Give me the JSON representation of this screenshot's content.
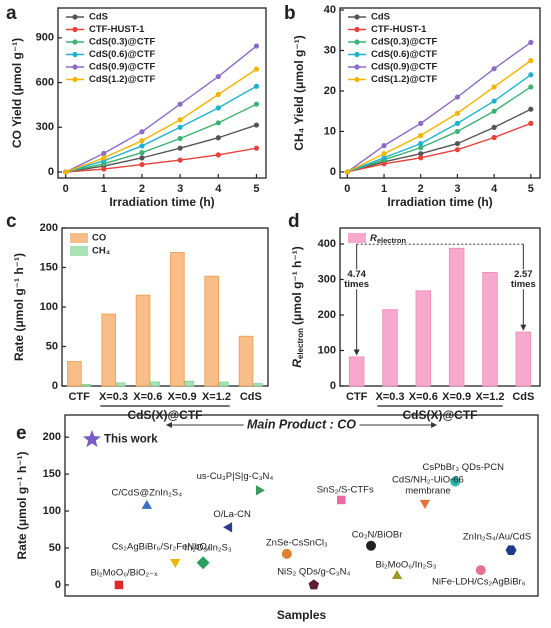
{
  "chart_data": [
    {
      "panel": "a",
      "type": "line",
      "xlabel": "Irradiation time (h)",
      "ylabel": "CO Yield (μmol g⁻¹)",
      "x": [
        0,
        1,
        2,
        3,
        4,
        5
      ],
      "xlim": [
        -0.2,
        5.25
      ],
      "xticks": [
        0,
        1,
        2,
        3,
        4,
        5
      ],
      "ylim": [
        -40,
        1100
      ],
      "yticks": [
        0,
        300,
        600,
        900
      ],
      "legend": "upper left",
      "series": [
        {
          "name": "CdS",
          "color": "#555555",
          "values": [
            0,
            40,
            95,
            160,
            230,
            315
          ]
        },
        {
          "name": "CTF-HUST-1",
          "color": "#e8413c",
          "values": [
            0,
            20,
            50,
            80,
            115,
            160
          ]
        },
        {
          "name": "CdS(0.3)@CTF",
          "color": "#3cb371",
          "values": [
            0,
            55,
            130,
            225,
            330,
            455
          ]
        },
        {
          "name": "CdS(0.6)@CTF",
          "color": "#1fb2cc",
          "values": [
            0,
            75,
            175,
            300,
            430,
            575
          ]
        },
        {
          "name": "CdS(0.9)@CTF",
          "color": "#8a6cc8",
          "values": [
            0,
            125,
            270,
            455,
            640,
            845
          ]
        },
        {
          "name": "CdS(1.2)@CTF",
          "color": "#f4b400",
          "values": [
            0,
            95,
            210,
            350,
            520,
            690
          ]
        }
      ]
    },
    {
      "panel": "b",
      "type": "line",
      "xlabel": "Irradiation time (h)",
      "ylabel": "CH₄ Yield (μmol g⁻¹)",
      "x": [
        0,
        1,
        2,
        3,
        4,
        5
      ],
      "xlim": [
        -0.2,
        5.25
      ],
      "xticks": [
        0,
        1,
        2,
        3,
        4,
        5
      ],
      "ylim": [
        -1.5,
        40.5
      ],
      "yticks": [
        0,
        10,
        20,
        30,
        40
      ],
      "legend": "upper left",
      "series": [
        {
          "name": "CdS",
          "color": "#555555",
          "values": [
            0,
            2.5,
            4.5,
            7,
            11,
            15.5
          ]
        },
        {
          "name": "CTF-HUST-1",
          "color": "#e8413c",
          "values": [
            0,
            2,
            3.5,
            5.5,
            8.5,
            12
          ]
        },
        {
          "name": "CdS(0.3)@CTF",
          "color": "#3cb371",
          "values": [
            0,
            3,
            6,
            10,
            15,
            21
          ]
        },
        {
          "name": "CdS(0.6)@CTF",
          "color": "#1fb2cc",
          "values": [
            0,
            3.5,
            7,
            12,
            17.5,
            24
          ]
        },
        {
          "name": "CdS(0.9)@CTF",
          "color": "#8a6cc8",
          "values": [
            0,
            6.5,
            12,
            18.5,
            25.5,
            32
          ]
        },
        {
          "name": "CdS(1.2)@CTF",
          "color": "#f4b400",
          "values": [
            0,
            4.5,
            9,
            14.5,
            21,
            27.5
          ]
        }
      ]
    },
    {
      "panel": "c",
      "type": "bar",
      "ylabel": "Rate (μmol g⁻¹ h⁻¹)",
      "group_label": "CdS(X)@CTF",
      "categories": [
        "CTF",
        "X=0.3",
        "X=0.6",
        "X=0.9",
        "X=1.2",
        "CdS"
      ],
      "ylim": [
        0,
        200
      ],
      "yticks": [
        0,
        50,
        100,
        150,
        200
      ],
      "legend": "upper left",
      "series": [
        {
          "name": "CO",
          "color": "#f7be8a",
          "values": [
            31,
            91,
            115,
            169,
            139,
            63
          ]
        },
        {
          "name": "CH₄",
          "color": "#a9e2b4",
          "values": [
            2,
            4,
            5,
            6,
            5,
            3
          ]
        }
      ]
    },
    {
      "panel": "d",
      "type": "bar",
      "ylabel": "R",
      "ylabel_sub": "electron",
      "ylabel_unit": "(μmol g⁻¹ h⁻¹)",
      "group_label": "CdS(X)@CTF",
      "categories": [
        "CTF",
        "X=0.3",
        "X=0.6",
        "X=0.9",
        "X=1.2",
        "CdS"
      ],
      "ylim": [
        0,
        445
      ],
      "yticks": [
        0,
        100,
        200,
        300,
        400
      ],
      "legend": "upper left",
      "annotations": [
        {
          "lines": [
            "4.74",
            "times"
          ]
        },
        {
          "lines": [
            "2.57",
            "times"
          ]
        }
      ],
      "series": [
        {
          "name": "R",
          "name_sub": "electron",
          "color": "#f6a9cc",
          "values": [
            82,
            215,
            268,
            388,
            320,
            152
          ]
        }
      ]
    },
    {
      "panel": "e",
      "type": "scatter",
      "title": "Main Product : CO",
      "xlabel": "Samples",
      "ylabel": "Rate (μmol g⁻¹ h⁻¹)",
      "xlim": [
        0,
        100
      ],
      "ylim": [
        -15,
        230
      ],
      "yticks": [
        0,
        50,
        100,
        150,
        200
      ],
      "points": [
        {
          "label": "This work",
          "x": 5.7,
          "y": 197,
          "color": "#7b5cc4",
          "marker": "star"
        },
        {
          "label": "C/CdS@ZnIn₂S₄",
          "x": 17.3,
          "y": 107,
          "color": "#3a6fc4",
          "marker": "triangle"
        },
        {
          "label": "us-Cu₃P|S|g-C₃N₄",
          "x": 41,
          "y": 128,
          "color": "#3c9a5a",
          "marker": "triangle-right"
        },
        {
          "label": "SnS₂/S-CTFs",
          "x": 58.4,
          "y": 115,
          "color": "#e86aa0",
          "marker": "square"
        },
        {
          "label": "CsPbBr₃ QDs-PCN",
          "x": 82.5,
          "y": 140,
          "color": "#2bb5a8",
          "marker": "circle"
        },
        {
          "label": "O/La-CN",
          "x": 34.7,
          "y": 78,
          "color": "#2a3a8c",
          "marker": "triangle-left"
        },
        {
          "label": [
            "CdS/NH₂-UiO-66",
            "membrane"
          ],
          "x": 76.1,
          "y": 111,
          "color": "#e8703c",
          "marker": "triangle-down"
        },
        {
          "label": "Co₂N/BiOBr",
          "x": 64.7,
          "y": 53,
          "color": "#222222",
          "marker": "circle"
        },
        {
          "label": "ZnIn₂S₄/Au/CdS",
          "x": 94.3,
          "y": 47,
          "color": "#1f3a8a",
          "marker": "hexagon"
        },
        {
          "label": "Cs₂AgBiBr₆/Sr₂FeNbO₄",
          "x": 23.3,
          "y": 31,
          "color": "#e8b800",
          "marker": "triangle-down"
        },
        {
          "label": "ZnSe-CsSnCl₃",
          "x": 46.9,
          "y": 42,
          "color": "#e08030",
          "marker": "circle"
        },
        {
          "label": "Bi₂MoO₆/In₂S₃",
          "x": 70.2,
          "y": 12,
          "color": "#9a9a20",
          "marker": "triangle"
        },
        {
          "label": "In₂O₃/In₂S₃",
          "x": 29.2,
          "y": 30,
          "color": "#2aa060",
          "marker": "diamond"
        },
        {
          "label": "Bi₂MoO₆/BiO₂₋ₓ",
          "x": 11.4,
          "y": 0,
          "color": "#e02828",
          "marker": "square"
        },
        {
          "label": "NiS₂ QDs/g-C₃N₄",
          "x": 52.6,
          "y": 0,
          "color": "#5a2030",
          "marker": "pentagon"
        },
        {
          "label": "NiFe-LDH/Cs₂AgBiBr₆",
          "x": 87.9,
          "y": 20,
          "color": "#e87090",
          "marker": "circle"
        }
      ]
    }
  ]
}
